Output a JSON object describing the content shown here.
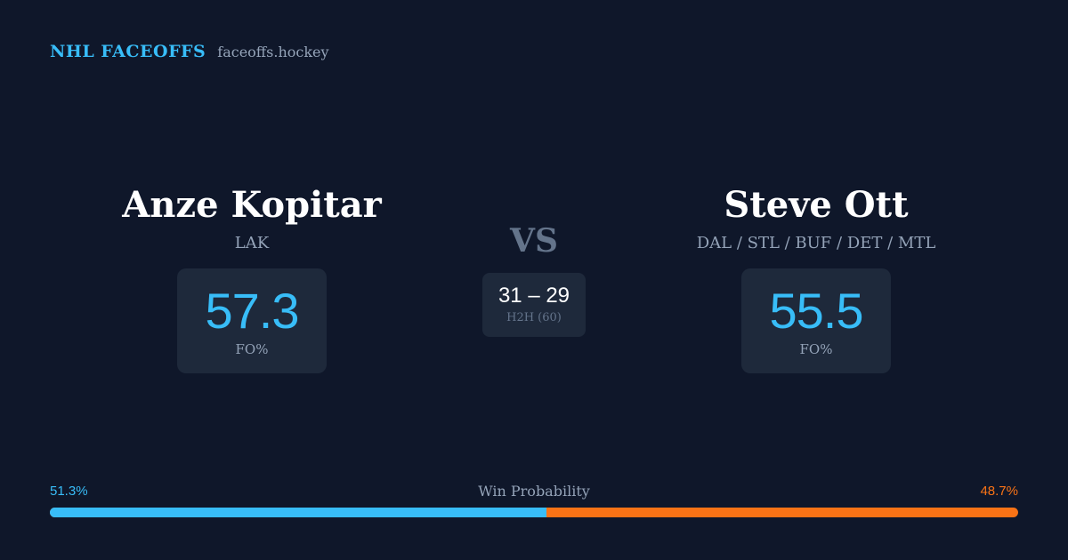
{
  "brand": {
    "title": "NHL FACEOFFS",
    "site": "faceoffs.hockey"
  },
  "player_left": {
    "name": "Anze Kopitar",
    "team": "LAK",
    "fo_pct": "57.3",
    "fo_label": "FO%"
  },
  "player_right": {
    "name": "Steve Ott",
    "team": "DAL / STL / BUF / DET / MTL",
    "fo_pct": "55.5",
    "fo_label": "FO%"
  },
  "versus": {
    "label": "VS",
    "h2h_score": "31 – 29",
    "h2h_label": "H2H (60)"
  },
  "win_probability": {
    "title": "Win Probability",
    "left_label": "51.3%",
    "right_label": "48.7%",
    "left_value": 51.3,
    "right_value": 48.7
  },
  "colors": {
    "background": "#0f172a",
    "card": "#1e293b",
    "accent_left": "#38bdf8",
    "accent_right": "#f97316",
    "muted": "#94a3b8"
  }
}
